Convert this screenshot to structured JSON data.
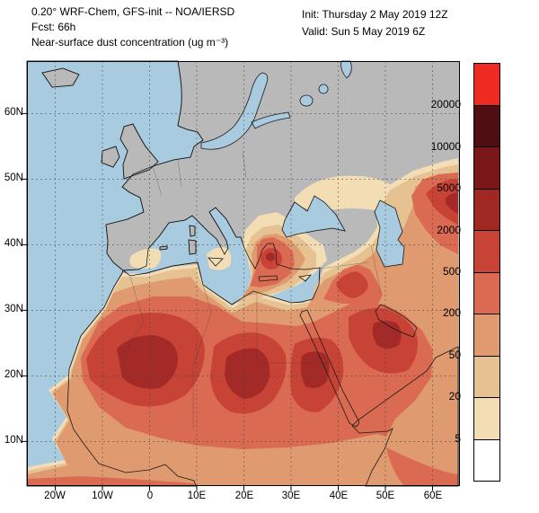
{
  "header": {
    "model_line": "0.20° WRF-Chem, GFS-init -- NOA/IERSD",
    "fcst_line": "Fcst: 66h",
    "field_line": "Near-surface dust concentration (ug m⁻³)",
    "init_line": "Init: Thursday 2 May 2019  12Z",
    "valid_line": "Valid: Sun 5 May 2019  6Z"
  },
  "axes": {
    "y": [
      "60N",
      "50N",
      "40N",
      "30N",
      "20N",
      "10N"
    ],
    "x": [
      "20W",
      "10W",
      "0",
      "10E",
      "20E",
      "30E",
      "40E",
      "50E",
      "60E"
    ]
  },
  "colorbar": {
    "labels": [
      "20000",
      "10000",
      "5000",
      "2000",
      "500",
      "200",
      "50",
      "20",
      "5"
    ],
    "colors": [
      "#ee2a23",
      "#4f0e12",
      "#7a1719",
      "#a02823",
      "#c64336",
      "#db6a52",
      "#e09a6f",
      "#e6c191",
      "#f2ddb4",
      "#ffffff"
    ]
  },
  "palette": {
    "sea": "#a8cbe0",
    "land": "#b9b9b9",
    "d1": "#f2ddb4",
    "d2": "#e6c191",
    "d3": "#e09a6f",
    "d4": "#db6a52",
    "d5": "#c64336",
    "d6": "#a32a27"
  }
}
